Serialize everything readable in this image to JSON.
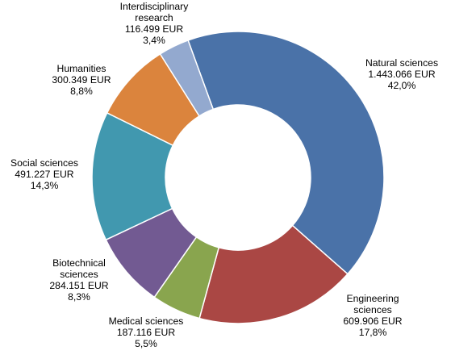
{
  "chart_data": {
    "type": "pie",
    "variant": "donut",
    "unit": "EUR",
    "slices": [
      {
        "label": [
          "Natural sciences"
        ],
        "amount": "1.443.066 EUR",
        "percent_text": "42,0%",
        "value": 1443066,
        "percent": 42.0,
        "color": "#4A72A8"
      },
      {
        "label": [
          "Engineering",
          "sciences"
        ],
        "amount": "609.906 EUR",
        "percent_text": "17,8%",
        "value": 609906,
        "percent": 17.8,
        "color": "#AA4744"
      },
      {
        "label": [
          "Medical sciences"
        ],
        "amount": "187.116 EUR",
        "percent_text": "5,5%",
        "value": 187116,
        "percent": 5.5,
        "color": "#89A54E"
      },
      {
        "label": [
          "Biotechnical",
          "sciences"
        ],
        "amount": "284.151 EUR",
        "percent_text": "8,3%",
        "value": 284151,
        "percent": 8.3,
        "color": "#725A92"
      },
      {
        "label": [
          "Social sciences"
        ],
        "amount": "491.227 EUR",
        "percent_text": "14,3%",
        "value": 491227,
        "percent": 14.3,
        "color": "#4198AF"
      },
      {
        "label": [
          "Humanities"
        ],
        "amount": "300.349 EUR",
        "percent_text": "8,8%",
        "value": 300349,
        "percent": 8.8,
        "color": "#DB843D"
      },
      {
        "label": [
          "Interdisciplinary",
          "research"
        ],
        "amount": "116.499 EUR",
        "percent_text": "3,4%",
        "value": 116499,
        "percent": 3.4,
        "color": "#93A9CF"
      }
    ]
  }
}
